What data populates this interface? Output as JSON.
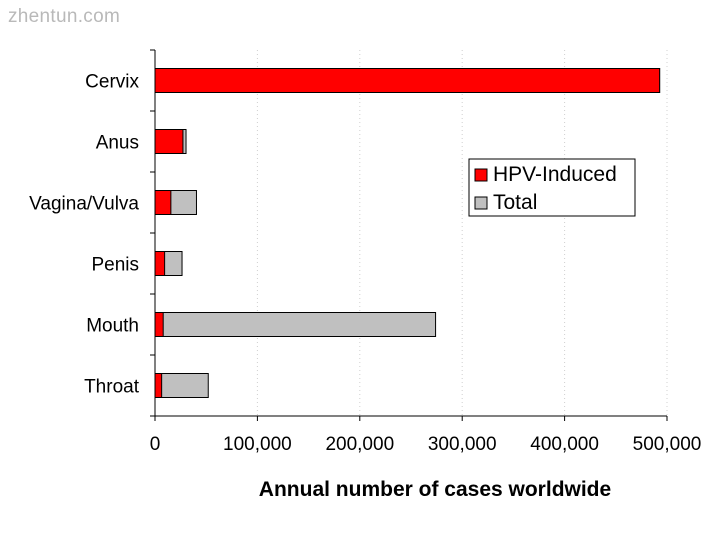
{
  "watermark": "zhentun.com",
  "chart_data": {
    "type": "bar",
    "orientation": "horizontal",
    "stacked": true,
    "categories": [
      "Cervix",
      "Anus",
      "Vagina/Vulva",
      "Penis",
      "Mouth",
      "Throat"
    ],
    "series": [
      {
        "name": "HPV-Induced",
        "color": "#ff0000",
        "values": [
          492800,
          27300,
          15500,
          9400,
          8000,
          6500
        ]
      },
      {
        "name": "Total",
        "color": "#c0c0c0",
        "values": [
          492800,
          30300,
          40500,
          26400,
          274000,
          52000
        ]
      }
    ],
    "xlabel": "Annual number of cases worldwide",
    "xlim": [
      0,
      500000
    ],
    "xticks": [
      "0",
      "100,000",
      "200,000",
      "300,000",
      "400,000",
      "500,000"
    ],
    "xtick_values": [
      0,
      100000,
      200000,
      300000,
      400000,
      500000
    ],
    "grid": "dotted vertical",
    "legend_position": "right"
  }
}
